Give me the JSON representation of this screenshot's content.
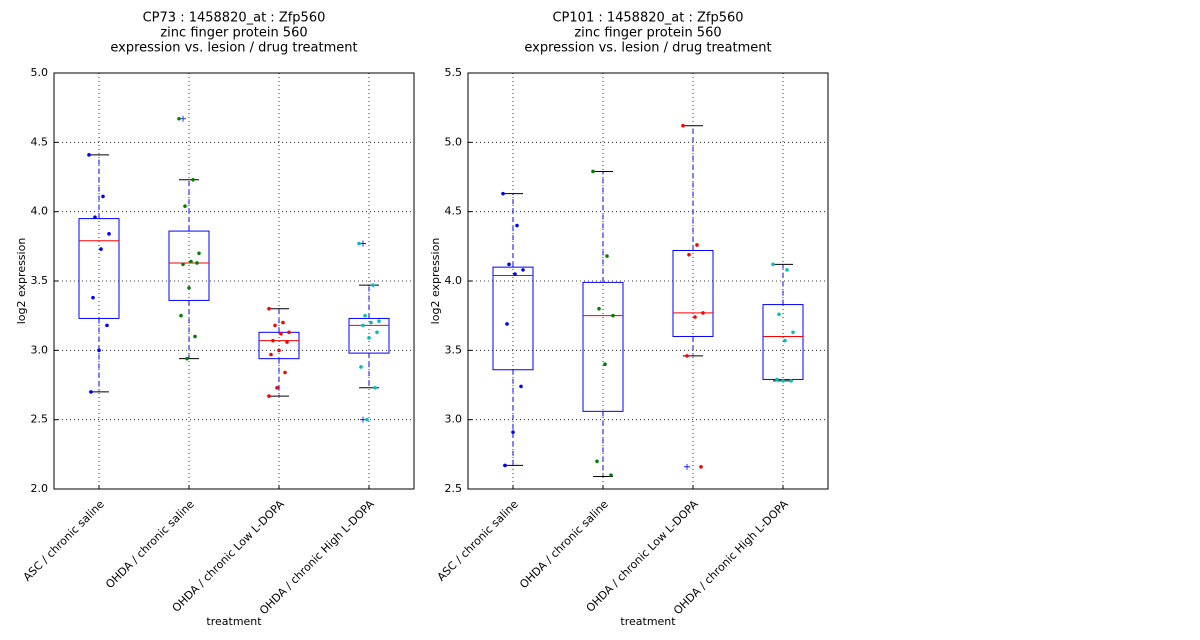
{
  "chart_data": [
    {
      "type": "box",
      "title": [
        "CP73 : 1458820_at : Zfp560",
        "zinc finger protein 560",
        "expression vs. lesion / drug treatment"
      ],
      "xlabel": "treatment",
      "ylabel": "log2 expression",
      "categories": [
        "ASC / chronic saline",
        "OHDA / chronic saline",
        "OHDA / chronic Low L-DOPA",
        "OHDA / chronic High L-DOPA"
      ],
      "ylim": [
        2,
        5
      ],
      "yticks": [
        {
          "value": 2,
          "label": "2.0"
        },
        2.5,
        {
          "value": 3,
          "label": "3.0"
        },
        3.5,
        {
          "value": 4,
          "label": "4.0"
        },
        4.5,
        {
          "value": 5,
          "label": "5.0"
        }
      ],
      "grid": true,
      "box_color": "#0000ff",
      "median_color": "#ff0000",
      "boxes": [
        {
          "whislo": 2.7,
          "q1": 3.23,
          "median": 3.79,
          "q3": 3.95,
          "whishi": 4.41,
          "outliers": []
        },
        {
          "whislo": 2.94,
          "q1": 3.36,
          "median": 3.63,
          "q3": 3.86,
          "whishi": 4.23,
          "outliers": [
            4.67
          ]
        },
        {
          "whislo": 2.67,
          "q1": 2.94,
          "median": 3.07,
          "q3": 3.13,
          "whishi": 3.3,
          "outliers": []
        },
        {
          "whislo": 2.73,
          "q1": 2.98,
          "median": 3.18,
          "q3": 3.23,
          "whishi": 3.47,
          "outliers": [
            3.77,
            2.5
          ]
        }
      ],
      "points": [
        {
          "color": "#0000ff",
          "values": [
            4.41,
            4.11,
            3.96,
            3.84,
            3.73,
            3.38,
            3.18,
            3.0,
            2.7
          ]
        },
        {
          "color": "#008000",
          "values": [
            4.67,
            4.23,
            4.04,
            3.7,
            3.64,
            3.62,
            3.63,
            3.45,
            3.25,
            3.1,
            2.94
          ]
        },
        {
          "color": "#ff0000",
          "values": [
            3.3,
            3.2,
            3.18,
            3.13,
            3.12,
            3.07,
            3.06,
            3.0,
            2.97,
            2.84,
            2.73,
            2.67
          ]
        },
        {
          "color": "#00bfbf",
          "values": [
            3.77,
            3.47,
            3.25,
            3.21,
            3.2,
            3.18,
            3.13,
            3.09,
            2.88,
            2.73,
            2.5
          ]
        }
      ]
    },
    {
      "type": "box",
      "title": [
        "CP101 : 1458820_at : Zfp560",
        "zinc finger protein 560",
        "expression vs. lesion / drug treatment"
      ],
      "xlabel": "treatment",
      "ylabel": "log2 expression",
      "categories": [
        "ASC / chronic saline",
        "OHDA / chronic saline",
        "OHDA / chronic Low L-DOPA",
        "OHDA / chronic High L-DOPA"
      ],
      "ylim": [
        2.5,
        5.5
      ],
      "yticks": [
        2.5,
        {
          "value": 3,
          "label": "3.0"
        },
        3.5,
        {
          "value": 4,
          "label": "4.0"
        },
        4.5,
        {
          "value": 5,
          "label": "5.0"
        },
        5.5
      ],
      "grid": true,
      "box_color": "#0000ff",
      "median_color": "#ff0000",
      "boxes": [
        {
          "whislo": 2.67,
          "q1": 3.36,
          "median": 4.04,
          "q3": 4.1,
          "whishi": 4.63,
          "outliers": []
        },
        {
          "whislo": 2.59,
          "q1": 3.06,
          "median": 3.75,
          "q3": 3.99,
          "whishi": 4.79,
          "outliers": []
        },
        {
          "whislo": 3.46,
          "q1": 3.6,
          "median": 3.77,
          "q3": 4.22,
          "whishi": 5.12,
          "outliers": [
            2.66
          ]
        },
        {
          "whislo": 3.28,
          "q1": 3.29,
          "median": 3.6,
          "q3": 3.83,
          "whishi": 4.12,
          "outliers": []
        }
      ],
      "points": [
        {
          "color": "#0000ff",
          "values": [
            4.63,
            4.4,
            4.12,
            4.08,
            4.05,
            3.69,
            3.24,
            2.91,
            2.67
          ]
        },
        {
          "color": "#008000",
          "values": [
            4.79,
            4.18,
            3.8,
            3.75,
            3.4,
            2.7,
            2.6
          ]
        },
        {
          "color": "#ff0000",
          "values": [
            5.12,
            4.26,
            4.19,
            3.77,
            3.74,
            3.46,
            2.66
          ]
        },
        {
          "color": "#00bfbf",
          "values": [
            4.12,
            4.08,
            3.76,
            3.63,
            3.57,
            3.29,
            3.28,
            3.28
          ]
        }
      ]
    }
  ]
}
